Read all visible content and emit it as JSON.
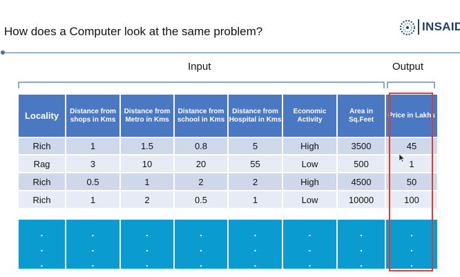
{
  "slide": {
    "title": "How does a Computer look at the same problem?",
    "logo_text": "INSAID",
    "input_label": "Input",
    "output_label": "Output"
  },
  "table": {
    "headers": [
      "Locality",
      "Distance from shops in Kms",
      "Distance from Metro in Kms",
      "Distance from school in Kms",
      "Distance from Hospital in Kms",
      "Economic Activity",
      "Area in Sq.Feet",
      "Price in Lakhs"
    ],
    "rows": [
      [
        "Rich",
        "1",
        "1.5",
        "0.8",
        "5",
        "High",
        "3500",
        "45"
      ],
      [
        "Rag",
        "3",
        "10",
        "20",
        "55",
        "Low",
        "500",
        "1"
      ],
      [
        "Rich",
        "0.5",
        "1",
        "2",
        "2",
        "High",
        "4500",
        "50"
      ],
      [
        "Rich",
        "1",
        "2",
        "0.5",
        "1",
        "Low",
        "10000",
        "100"
      ]
    ],
    "ellipsis": ".\n.\n."
  },
  "colors": {
    "header_bg": "#4a78c2",
    "row_odd": "#cfd7ea",
    "row_even": "#e7ebf5",
    "ellipsis_bg": "#0a9bd0",
    "highlight": "#e23a2e",
    "logo": "#1f3f66"
  }
}
